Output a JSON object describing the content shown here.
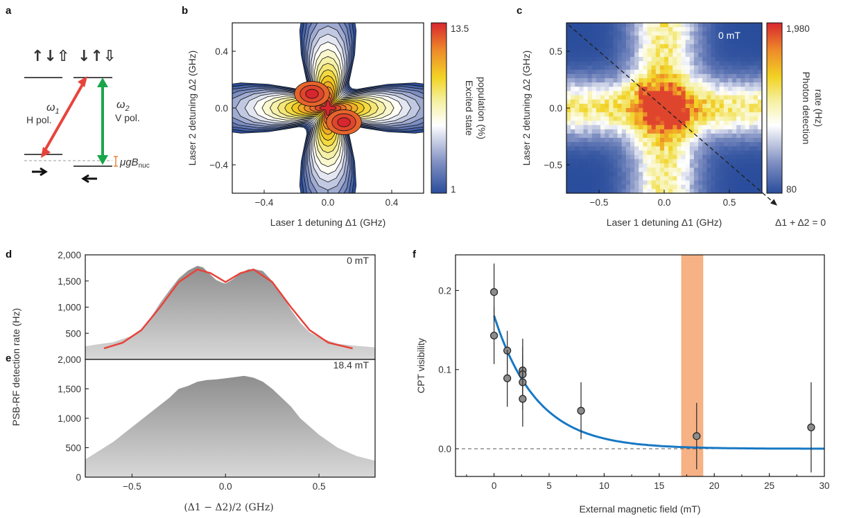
{
  "panels": {
    "a": "a",
    "b": "b",
    "c": "c",
    "d": "d",
    "e": "e",
    "f": "f"
  },
  "colors": {
    "red": "#e8433a",
    "green": "#18a64a",
    "orange": "#e8833a",
    "blue": "#1778c4",
    "shade": "#f5a878",
    "gray": "#8c8c8c"
  },
  "level_diagram": {
    "left_spins": "↑↓⇧",
    "right_spins": "↓↑⇩",
    "omega1": "ω",
    "omega1_sub": "1",
    "omega1_pol": "H pol.",
    "omega2": "ω",
    "omega2_sub": "2",
    "omega2_pol": "V pol.",
    "splitting": "μgB",
    "splitting_sub": "nuc"
  },
  "chart_data": [
    {
      "id": "b",
      "type": "heatmap",
      "xlabel": "Laser 1 detuning Δ1 (GHz)",
      "ylabel": "Laser 2 detuning Δ2 (GHz)",
      "xlim": [
        -0.6,
        0.6
      ],
      "ylim": [
        -0.6,
        0.6
      ],
      "xticks": [
        -0.4,
        0.0,
        0.4
      ],
      "yticks": [
        -0.4,
        0.0,
        0.4
      ],
      "xtick_labels": [
        "−0.4",
        "0.0",
        "0.4"
      ],
      "ytick_labels": [
        "−0.4",
        "0.0",
        "0.4"
      ],
      "colorbar": {
        "min": 1,
        "max": 13.5,
        "min_label": "1",
        "max_label": "13.5",
        "label_lines": [
          "Excited state",
          "population (%)"
        ]
      },
      "peaks": [
        {
          "x": -0.1,
          "y": 0.1,
          "value": 13.5
        },
        {
          "x": 0.1,
          "y": -0.1,
          "value": 13.5
        }
      ]
    },
    {
      "id": "c",
      "type": "heatmap",
      "xlabel": "Laser 1 detuning Δ1 (GHz)",
      "ylabel": "Laser 2 detuning Δ2 (GHz)",
      "xlim": [
        -0.75,
        0.75
      ],
      "ylim": [
        -0.75,
        0.75
      ],
      "xticks": [
        -0.5,
        0.0,
        0.5
      ],
      "yticks": [
        -0.5,
        0.0,
        0.5
      ],
      "xtick_labels": [
        "−0.5",
        "0.0",
        "0.5"
      ],
      "ytick_labels": [
        "−0.5",
        "0.0",
        "0.5"
      ],
      "field_label": "0 mT",
      "annotation": "Δ1 + Δ2 = 0",
      "colorbar": {
        "min": 80,
        "max": 1980,
        "min_label": "80",
        "max_label": "1,980",
        "label_lines": [
          "Photon detection",
          "rate (Hz)"
        ]
      }
    },
    {
      "id": "d",
      "type": "area",
      "field_label": "0 mT",
      "xlim": [
        -0.75,
        0.8
      ],
      "ylim": [
        0,
        2000
      ],
      "yticks": [
        500,
        1000,
        1500,
        2000
      ],
      "ytick_labels": [
        "500",
        "1,000",
        "1,500",
        "2,000"
      ],
      "series": [
        {
          "x": [
            -0.8,
            -0.7,
            -0.6,
            -0.5,
            -0.45,
            -0.4,
            -0.35,
            -0.3,
            -0.25,
            -0.2,
            -0.15,
            -0.12,
            -0.08,
            -0.05,
            -0.02,
            0.0,
            0.02,
            0.05,
            0.08,
            0.12,
            0.15,
            0.2,
            0.25,
            0.3,
            0.35,
            0.4,
            0.45,
            0.5,
            0.6,
            0.7,
            0.8
          ],
          "y": [
            250,
            280,
            330,
            450,
            580,
            800,
            1080,
            1320,
            1550,
            1700,
            1790,
            1760,
            1620,
            1520,
            1470,
            1450,
            1490,
            1560,
            1650,
            1720,
            1730,
            1690,
            1500,
            1250,
            950,
            700,
            520,
            420,
            300,
            260,
            230
          ]
        },
        {
          "x": [
            -0.65,
            -0.55,
            -0.45,
            -0.35,
            -0.25,
            -0.15,
            -0.08,
            0.0,
            0.08,
            0.15,
            0.25,
            0.35,
            0.45,
            0.55,
            0.68
          ],
          "y": [
            210,
            320,
            560,
            1000,
            1480,
            1720,
            1650,
            1480,
            1650,
            1720,
            1480,
            1000,
            560,
            320,
            210
          ]
        }
      ]
    },
    {
      "id": "e",
      "type": "area",
      "field_label": "18.4 mT",
      "xlabel": "(Δ1 − Δ2)/2 (GHz)",
      "ylabel": "PSB-RF detection rate (Hz)",
      "xlim": [
        -0.75,
        0.8
      ],
      "ylim": [
        0,
        2000
      ],
      "xticks": [
        -0.5,
        0.0,
        0.5
      ],
      "xtick_labels": [
        "−0.5",
        "0.0",
        "0.5"
      ],
      "yticks": [
        0,
        500,
        1000,
        1500,
        2000
      ],
      "ytick_labels": [
        "0",
        "500",
        "1,000",
        "1,500",
        "2,000"
      ],
      "series": [
        {
          "x": [
            -0.8,
            -0.7,
            -0.6,
            -0.5,
            -0.4,
            -0.3,
            -0.25,
            -0.2,
            -0.15,
            -0.1,
            -0.05,
            0.0,
            0.05,
            0.1,
            0.15,
            0.2,
            0.25,
            0.3,
            0.35,
            0.4,
            0.5,
            0.6,
            0.7,
            0.8
          ],
          "y": [
            300,
            400,
            600,
            850,
            1100,
            1350,
            1500,
            1550,
            1620,
            1650,
            1660,
            1680,
            1700,
            1720,
            1690,
            1620,
            1500,
            1350,
            1200,
            1000,
            720,
            500,
            360,
            280
          ]
        }
      ]
    },
    {
      "id": "f",
      "type": "scatter",
      "xlabel": "External magnetic field (mT)",
      "ylabel": "CPT visibility",
      "xlim": [
        -3.5,
        30
      ],
      "ylim": [
        -0.035,
        0.245
      ],
      "xticks": [
        0,
        5,
        10,
        15,
        20,
        25,
        30
      ],
      "xtick_labels": [
        "0",
        "5",
        "10",
        "15",
        "20",
        "25",
        "30"
      ],
      "yticks": [
        0.0,
        0.1,
        0.2
      ],
      "ytick_labels": [
        "0.0",
        "0.1",
        "0.2"
      ],
      "shaded_band": [
        17.0,
        19.0
      ],
      "points": [
        {
          "x": 0.0,
          "y": 0.198,
          "err": 0.036
        },
        {
          "x": 0.0,
          "y": 0.143,
          "err": 0.036
        },
        {
          "x": 1.2,
          "y": 0.124,
          "err": 0.025
        },
        {
          "x": 1.2,
          "y": 0.089,
          "err": 0.036
        },
        {
          "x": 2.6,
          "y": 0.099,
          "err": 0.04
        },
        {
          "x": 2.6,
          "y": 0.094,
          "err": 0.035
        },
        {
          "x": 2.6,
          "y": 0.084,
          "err": 0.035
        },
        {
          "x": 2.6,
          "y": 0.063,
          "err": 0.035
        },
        {
          "x": 7.9,
          "y": 0.048,
          "err": 0.036
        },
        {
          "x": 18.4,
          "y": 0.016,
          "err": 0.042
        },
        {
          "x": 28.8,
          "y": 0.027,
          "err": 0.057
        }
      ],
      "fit": {
        "amplitude": 0.168,
        "decay_mT": 3.9
      }
    }
  ]
}
